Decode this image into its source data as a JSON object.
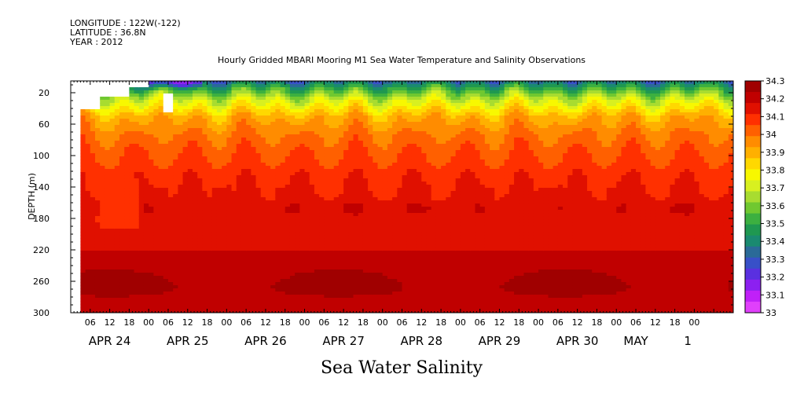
{
  "header": {
    "longitude": "LONGITUDE : 122W(-122)",
    "latitude": "LATITUDE : 36.8N",
    "year": "YEAR : 2012"
  },
  "chart_data": {
    "type": "heatmap",
    "title": "Hourly Gridded MBARI Mooring M1 Sea Water Temperature and Salinity Observations",
    "variable_title": "Sea Water Salinity",
    "xlabel": "",
    "ylabel": "DEPTH (m)",
    "y_ticks": [
      20,
      60,
      100,
      140,
      180,
      220,
      260,
      300
    ],
    "ylim": [
      300,
      5
    ],
    "x_hour_ticks": [
      "06",
      "12",
      "18",
      "00",
      "06",
      "12",
      "18",
      "00",
      "06",
      "12",
      "18",
      "00",
      "06",
      "12",
      "18",
      "00",
      "06",
      "12",
      "18",
      "00",
      "06",
      "12",
      "18",
      "00",
      "06",
      "12",
      "18",
      "00",
      "06",
      "12",
      "18",
      "00"
    ],
    "x_start_hour": 6,
    "x_range_hours": [
      0,
      204
    ],
    "x_date_labels": [
      {
        "label": "APR 24",
        "hour": 12
      },
      {
        "label": "APR 25",
        "hour": 36
      },
      {
        "label": "APR 26",
        "hour": 60
      },
      {
        "label": "APR 27",
        "hour": 84
      },
      {
        "label": "APR 28",
        "hour": 108
      },
      {
        "label": "APR 29",
        "hour": 132
      },
      {
        "label": "APR 30",
        "hour": 156
      },
      {
        "label": "MAY",
        "hour": 174
      },
      {
        "label": "1",
        "hour": 190
      }
    ],
    "colorbar_levels": [
      "34.3",
      "34.2",
      "34.1",
      "34",
      "33.9",
      "33.8",
      "33.7",
      "33.6",
      "33.5",
      "33.4",
      "33.3",
      "33.2",
      "33.1",
      "33"
    ],
    "colorbar_colors": [
      "#a00000",
      "#c00000",
      "#e01000",
      "#ff3000",
      "#ff6000",
      "#ff8c00",
      "#ffb000",
      "#ffd800",
      "#f8f800",
      "#d8f020",
      "#a8dc30",
      "#70c830",
      "#3cb040",
      "#1f9850",
      "#1a8a70",
      "#2a6a98",
      "#3850c8",
      "#5a30e0",
      "#8c20f0",
      "#c020f8",
      "#e040fb"
    ],
    "salinity_range": [
      33.0,
      34.3
    ],
    "isohaline_depths": [
      {
        "salinity": 33.5,
        "depth_m": 14
      },
      {
        "salinity": 33.7,
        "depth_m": 28
      },
      {
        "salinity": 33.9,
        "depth_m": 50
      },
      {
        "salinity": 34.0,
        "depth_m": 75
      },
      {
        "salinity": 34.05,
        "depth_m": 100
      },
      {
        "salinity": 34.1,
        "depth_m": 125
      },
      {
        "salinity": 34.15,
        "depth_m": 200
      },
      {
        "salinity": 34.2,
        "depth_m": 240
      },
      {
        "salinity": 34.25,
        "depth_m": 265
      },
      {
        "salinity": 34.2,
        "depth_m": 300
      }
    ],
    "data_start_hour": 6
  }
}
